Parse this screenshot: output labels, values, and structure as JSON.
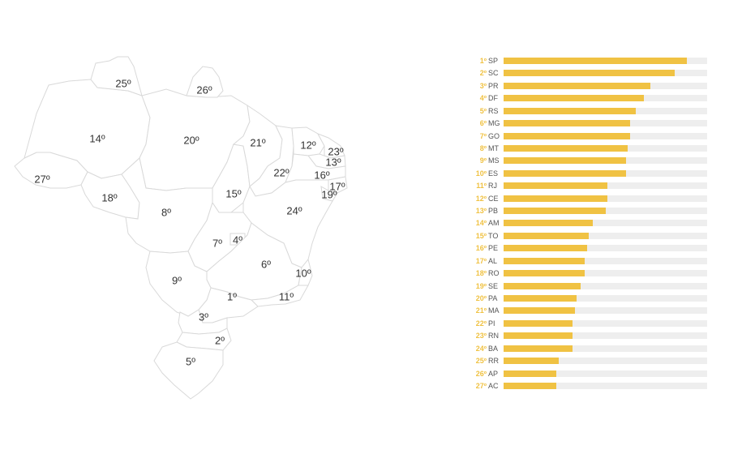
{
  "chart_data": [
    {
      "type": "map",
      "states": [
        {
          "uf": "AC",
          "label": "27º"
        },
        {
          "uf": "AM",
          "label": "14º"
        },
        {
          "uf": "RR",
          "label": "25º"
        },
        {
          "uf": "PA",
          "label": "20º"
        },
        {
          "uf": "AP",
          "label": "26º"
        },
        {
          "uf": "RO",
          "label": "18º"
        },
        {
          "uf": "MT",
          "label": "8º"
        },
        {
          "uf": "TO",
          "label": "15º"
        },
        {
          "uf": "MA",
          "label": "21º"
        },
        {
          "uf": "PI",
          "label": "22º"
        },
        {
          "uf": "CE",
          "label": "12º"
        },
        {
          "uf": "RN",
          "label": "23º"
        },
        {
          "uf": "PB",
          "label": "13º"
        },
        {
          "uf": "PE",
          "label": "16º"
        },
        {
          "uf": "AL",
          "label": "17º"
        },
        {
          "uf": "SE",
          "label": "19º"
        },
        {
          "uf": "BA",
          "label": "24º"
        },
        {
          "uf": "GO",
          "label": "7º"
        },
        {
          "uf": "DF",
          "label": "4º"
        },
        {
          "uf": "MG",
          "label": "6º"
        },
        {
          "uf": "ES",
          "label": "10º"
        },
        {
          "uf": "RJ",
          "label": "11º"
        },
        {
          "uf": "SP",
          "label": "1º"
        },
        {
          "uf": "MS",
          "label": "9º"
        },
        {
          "uf": "PR",
          "label": "3º"
        },
        {
          "uf": "SC",
          "label": "2º"
        },
        {
          "uf": "RS",
          "label": "5º"
        }
      ]
    },
    {
      "type": "bar",
      "orientation": "horizontal",
      "xlim": [
        0,
        1
      ],
      "categories": [
        "SP",
        "SC",
        "PR",
        "DF",
        "RS",
        "MG",
        "GO",
        "MT",
        "MS",
        "ES",
        "RJ",
        "CE",
        "PB",
        "AM",
        "TO",
        "PE",
        "AL",
        "RO",
        "SE",
        "PA",
        "MA",
        "PI",
        "RN",
        "BA",
        "RR",
        "AP",
        "AC"
      ],
      "ranks": [
        "1º",
        "2º",
        "3º",
        "4º",
        "5º",
        "6º",
        "7º",
        "8º",
        "9º",
        "10º",
        "11º",
        "12º",
        "13º",
        "14º",
        "15º",
        "16º",
        "17º",
        "18º",
        "19º",
        "20º",
        "21º",
        "22º",
        "23º",
        "24º",
        "25º",
        "26º",
        "27º"
      ],
      "values": [
        0.9,
        0.84,
        0.72,
        0.69,
        0.65,
        0.62,
        0.62,
        0.61,
        0.6,
        0.6,
        0.51,
        0.51,
        0.5,
        0.44,
        0.42,
        0.41,
        0.4,
        0.4,
        0.38,
        0.36,
        0.35,
        0.34,
        0.34,
        0.34,
        0.27,
        0.26,
        0.26
      ],
      "colors": {
        "bar": "#f0c243",
        "track": "#eeeeee",
        "rank": "#f0c243",
        "uf": "#555555"
      }
    }
  ]
}
